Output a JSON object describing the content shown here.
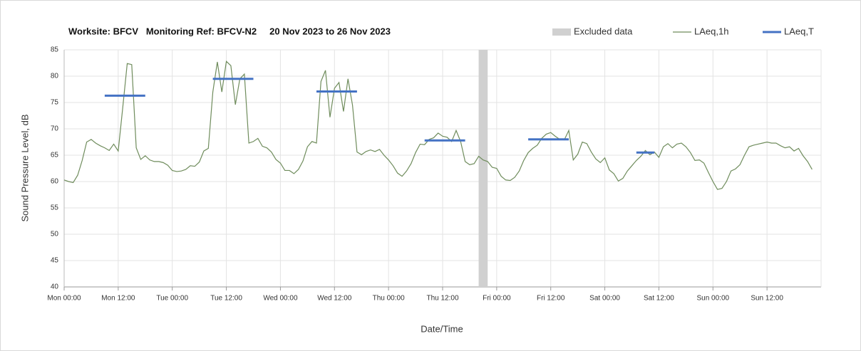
{
  "chart_data": {
    "type": "line",
    "title": "Worksite: BFCV   Monitoring Ref: BFCV-N2     20 Nov 2023 to 26 Nov 2023",
    "xlabel": "Date/Time",
    "ylabel": "Sound Pressure Level, dB",
    "xlim": [
      0,
      168
    ],
    "xticks": [
      {
        "value": 0,
        "label": "Mon 00:00"
      },
      {
        "value": 12,
        "label": "Mon 12:00"
      },
      {
        "value": 24,
        "label": "Tue 00:00"
      },
      {
        "value": 36,
        "label": "Tue 12:00"
      },
      {
        "value": 48,
        "label": "Wed 00:00"
      },
      {
        "value": 60,
        "label": "Wed 12:00"
      },
      {
        "value": 72,
        "label": "Thu 00:00"
      },
      {
        "value": 84,
        "label": "Thu 12:00"
      },
      {
        "value": 96,
        "label": "Fri 00:00"
      },
      {
        "value": 108,
        "label": "Fri 12:00"
      },
      {
        "value": 120,
        "label": "Sat 00:00"
      },
      {
        "value": 132,
        "label": "Sat 12:00"
      },
      {
        "value": 144,
        "label": "Sun 00:00"
      },
      {
        "value": 156,
        "label": "Sun 12:00"
      }
    ],
    "ylim": [
      40,
      85
    ],
    "yticks": [
      40,
      45,
      50,
      55,
      60,
      65,
      70,
      75,
      80,
      85
    ],
    "grid": true,
    "legend": "top-right",
    "series": [
      {
        "name": "Excluded data",
        "type": "band",
        "color": "#d0d0d0",
        "x": [
          92,
          94
        ]
      },
      {
        "name": "LAeq,1h",
        "type": "line",
        "color": "#6f8c5c",
        "x": [
          0,
          1,
          2,
          3,
          4,
          5,
          6,
          7,
          8,
          9,
          10,
          11,
          12,
          13,
          14,
          15,
          16,
          17,
          18,
          19,
          20,
          21,
          22,
          23,
          24,
          25,
          26,
          27,
          28,
          29,
          30,
          31,
          32,
          33,
          34,
          35,
          36,
          37,
          38,
          39,
          40,
          41,
          42,
          43,
          44,
          45,
          46,
          47,
          48,
          49,
          50,
          51,
          52,
          53,
          54,
          55,
          56,
          57,
          58,
          59,
          60,
          61,
          62,
          63,
          64,
          65,
          66,
          67,
          68,
          69,
          70,
          71,
          72,
          73,
          74,
          75,
          76,
          77,
          78,
          79,
          80,
          81,
          82,
          83,
          84,
          85,
          86,
          87,
          88,
          89,
          90,
          91,
          92,
          93,
          94,
          95,
          96,
          97,
          98,
          99,
          100,
          101,
          102,
          103,
          104,
          105,
          106,
          107,
          108,
          109,
          110,
          111,
          112,
          113,
          114,
          115,
          116,
          117,
          118,
          119,
          120,
          121,
          122,
          123,
          124,
          125,
          126,
          127,
          128,
          129,
          130,
          131,
          132,
          133,
          134,
          135,
          136,
          137,
          138,
          139,
          140,
          141,
          142,
          143,
          144,
          145,
          146,
          147,
          148,
          149,
          150,
          151,
          152,
          153,
          154,
          155,
          156,
          157,
          158,
          159,
          160,
          161,
          162,
          163,
          164,
          165,
          166
        ],
        "values": [
          60.3,
          60.0,
          59.8,
          61.2,
          64,
          67.5,
          68,
          67.3,
          66.8,
          66.4,
          65.9,
          67.1,
          65.8,
          74,
          82.4,
          82.2,
          66.4,
          64.2,
          64.9,
          64.1,
          63.8,
          63.8,
          63.6,
          63.1,
          62.1,
          61.9,
          62,
          62.3,
          63,
          62.9,
          63.7,
          65.8,
          66.3,
          77,
          82.7,
          77,
          82.8,
          82,
          74.6,
          79.5,
          80.4,
          67.3,
          67.6,
          68.2,
          66.7,
          66.4,
          65.6,
          64.2,
          63.5,
          62.1,
          62.1,
          61.5,
          62.3,
          63.9,
          66.6,
          67.6,
          67.3,
          79,
          81.1,
          72.2,
          77.7,
          78.8,
          73.3,
          79.5,
          74.5,
          65.6,
          65.1,
          65.7,
          66,
          65.7,
          66.1,
          65,
          64.1,
          63,
          61.6,
          61,
          62,
          63.4,
          65.5,
          67.1,
          67,
          68,
          68.3,
          69.2,
          68.6,
          68.4,
          67.6,
          69.7,
          67.6,
          63.8,
          63.2,
          63.4,
          64.8,
          64.1,
          63.8,
          62.7,
          62.5,
          61,
          60.3,
          60.2,
          60.8,
          62,
          64,
          65.5,
          66.3,
          66.9,
          68.2,
          69,
          69.3,
          68.6,
          68,
          67.9,
          69.7,
          64.1,
          65.2,
          67.5,
          67.2,
          65.6,
          64.3,
          63.6,
          64.5,
          62.2,
          61.5,
          60.1,
          60.6,
          62,
          63,
          64,
          64.8,
          65.9,
          65.1,
          65.6,
          64.6,
          66.6,
          67.2,
          66.4,
          67.1,
          67.3,
          66.6,
          65.5,
          64,
          64.1,
          63.5,
          61.7,
          60,
          58.5,
          58.7,
          60,
          62,
          62.4,
          63.2,
          65,
          66.6,
          66.9,
          67.1,
          67.3,
          67.5,
          67.3,
          67.3,
          66.8,
          66.4,
          66.6,
          65.8,
          66.3,
          64.9,
          63.8,
          62.3
        ]
      },
      {
        "name": "LAeq,T",
        "type": "segments",
        "color": "#4472c4",
        "segments": [
          {
            "x": [
              9,
              18
            ],
            "value": 76.3
          },
          {
            "x": [
              33,
              42
            ],
            "value": 79.5
          },
          {
            "x": [
              56,
              65
            ],
            "value": 77.1
          },
          {
            "x": [
              80,
              89
            ],
            "value": 67.8
          },
          {
            "x": [
              103,
              112
            ],
            "value": 68.0
          },
          {
            "x": [
              127,
              131
            ],
            "value": 65.5
          }
        ]
      }
    ]
  }
}
